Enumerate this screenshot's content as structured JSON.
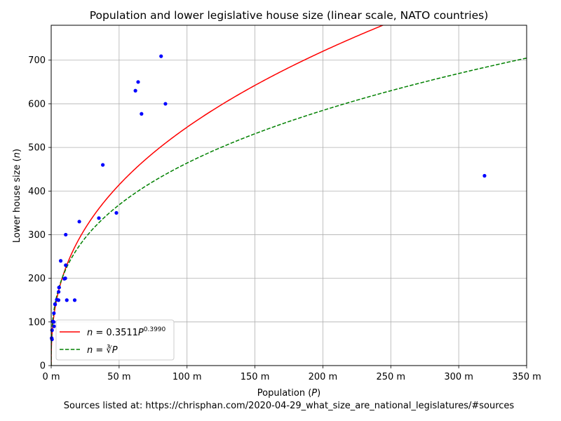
{
  "chart_data": {
    "type": "scatter",
    "title": "Population and lower legislative house size (linear scale, NATO countries)",
    "xlabel": "Population (P)",
    "ylabel": "Lower house size (n)",
    "footer": "Sources listed at: https://chrisphan.com/2020-04-29_what_size_are_national_legislatures/#sources",
    "xlim": [
      0,
      350
    ],
    "ylim": [
      0,
      780
    ],
    "x_unit": "million",
    "x_ticks": [
      0,
      50,
      100,
      150,
      200,
      250,
      300,
      350
    ],
    "x_tick_labels": [
      "0 m",
      "50 m",
      "100 m",
      "150 m",
      "200 m",
      "250 m",
      "300 m",
      "350 m"
    ],
    "y_ticks": [
      0,
      100,
      200,
      300,
      400,
      500,
      600,
      700
    ],
    "y_tick_labels": [
      "0",
      "100",
      "200",
      "300",
      "400",
      "500",
      "600",
      "700"
    ],
    "grid": true,
    "legend_position": "lower-left",
    "series": [
      {
        "kind": "points",
        "color": "#0000ff",
        "points": [
          [
            0.35,
            63
          ],
          [
            0.6,
            60
          ],
          [
            0.63,
            81
          ],
          [
            1.3,
            101
          ],
          [
            1.9,
            100
          ],
          [
            2.0,
            120
          ],
          [
            2.1,
            90
          ],
          [
            2.8,
            141
          ],
          [
            2.9,
            140
          ],
          [
            4.1,
            151
          ],
          [
            5.4,
            150
          ],
          [
            5.5,
            169
          ],
          [
            5.8,
            179
          ],
          [
            5.8,
            179
          ],
          [
            7.0,
            240
          ],
          [
            9.7,
            199
          ],
          [
            10.4,
            200
          ],
          [
            10.7,
            300
          ],
          [
            10.7,
            230
          ],
          [
            11.5,
            150
          ],
          [
            17.3,
            150
          ],
          [
            20.7,
            330
          ],
          [
            35.1,
            338
          ],
          [
            38.0,
            460
          ],
          [
            48.0,
            350
          ],
          [
            62.0,
            630
          ],
          [
            64.0,
            650
          ],
          [
            66.5,
            577
          ],
          [
            80.9,
            709
          ],
          [
            84.1,
            600
          ],
          [
            319.0,
            435
          ]
        ]
      },
      {
        "kind": "curve",
        "name": "n = 0.3511P^0.3990",
        "legend_prefix": "n = 0.3511P",
        "legend_exponent": "0.3990",
        "color": "#ff0000",
        "style": "solid",
        "formula": {
          "coefficient": 0.3511,
          "exponent": 0.399
        }
      },
      {
        "kind": "curve",
        "name": "n = ∛P",
        "legend_prefix": "n = ",
        "legend_radical": "∛P",
        "color": "#008000",
        "style": "dashed",
        "formula": {
          "coefficient": 1,
          "exponent": 0.3333333333
        }
      }
    ]
  }
}
